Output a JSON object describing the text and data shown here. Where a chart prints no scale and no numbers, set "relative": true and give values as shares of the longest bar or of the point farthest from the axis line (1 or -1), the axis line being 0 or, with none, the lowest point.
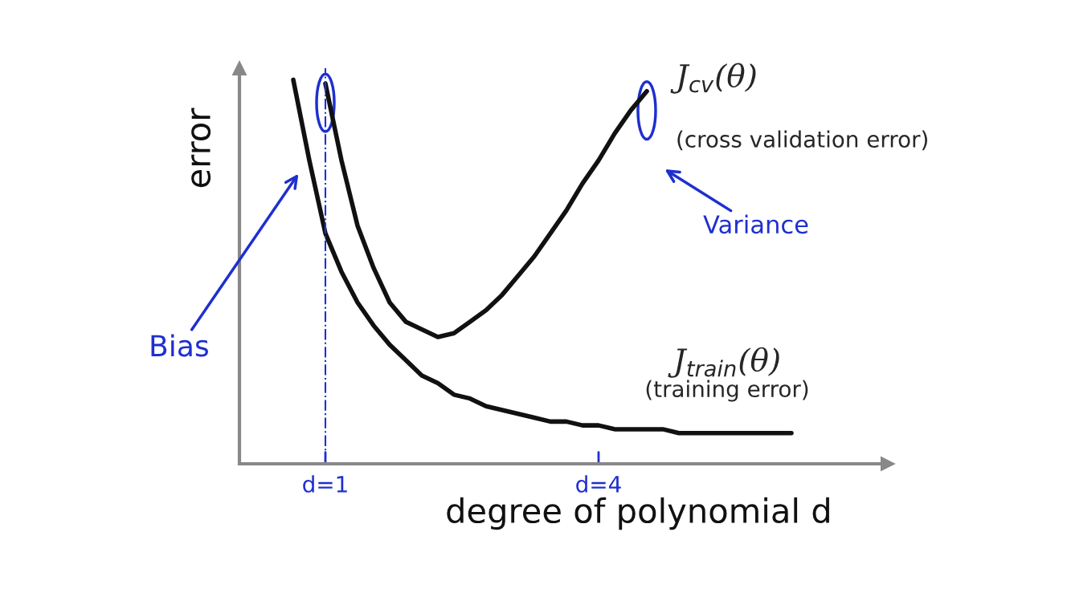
{
  "chart_data": {
    "type": "line",
    "relative": true,
    "xlabel": "degree of polynomial d",
    "ylabel": "error",
    "categories": [
      null,
      null,
      null,
      null,
      null,
      null,
      null,
      null,
      null,
      null,
      null,
      null,
      null,
      null,
      null,
      null,
      null,
      null,
      null,
      null,
      null,
      null,
      null,
      null,
      null,
      null,
      null,
      null,
      null,
      null,
      null,
      null
    ],
    "series": [
      {
        "name": "J$_{train}$(θ)",
        "color": "#111111",
        "values": [
          1.0,
          0.79,
          0.6,
          0.5,
          0.42,
          0.36,
          0.31,
          0.27,
          0.23,
          0.21,
          0.18,
          0.17,
          0.15,
          0.14,
          0.13,
          0.12,
          0.11,
          0.11,
          0.1,
          0.1,
          0.09,
          0.09,
          0.09,
          0.09,
          0.08,
          0.08,
          0.08,
          0.08,
          0.08,
          0.08,
          0.08,
          0.08
        ]
      },
      {
        "name": "J$_{cv}$(θ)",
        "color": "#111111",
        "values": [
          null,
          null,
          0.99,
          0.79,
          0.62,
          0.51,
          0.42,
          0.37,
          0.35,
          0.33,
          0.34,
          0.37,
          0.4,
          0.44,
          0.49,
          0.54,
          0.6,
          0.66,
          0.73,
          0.79,
          0.86,
          0.92,
          0.97,
          null,
          null,
          null,
          null,
          null,
          null,
          null,
          null,
          null
        ]
      }
    ],
    "annotations": [
      "(training error)",
      "(cross validation error)",
      "Bias",
      "Variance",
      "d=1",
      "d=4"
    ],
    "legend": false,
    "marker": "none",
    "line_style": "solid"
  }
}
